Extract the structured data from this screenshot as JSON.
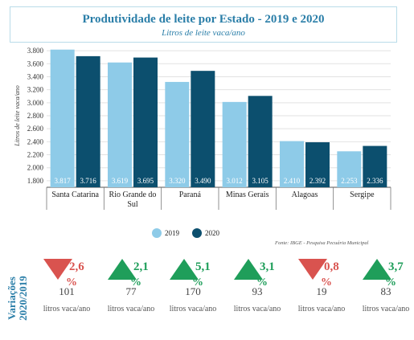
{
  "title": "Produtividade de leite por Estado - 2019 e 2020",
  "subtitle": "Litros de leite vaca/ano",
  "source": "Fonte: IBGE - Pesquisa Pecuária Municipal",
  "colors": {
    "y2019": "#8ecbe8",
    "y2020": "#0c4f6e",
    "up": "#1f9e5a",
    "down": "#d9534f",
    "accent": "#2a7ea8"
  },
  "chart_data": {
    "type": "bar",
    "title": "Produtividade de leite por Estado - 2019 e 2020",
    "subtitle": "Litros de leite vaca/ano",
    "ylabel": "Litros de leite vaca/ano",
    "ylim": [
      1700,
      3900
    ],
    "yticks": [
      "1.800",
      "2.000",
      "2.200",
      "2.400",
      "2.600",
      "2.800",
      "3.000",
      "3.200",
      "3.400",
      "3.600",
      "3.800"
    ],
    "ytick_values": [
      1800,
      2000,
      2200,
      2400,
      2600,
      2800,
      3000,
      3200,
      3400,
      3600,
      3800
    ],
    "categories": [
      "Santa Catarina",
      "Rio Grande do Sul",
      "Paraná",
      "Minas Gerais",
      "Alagoas",
      "Sergipe"
    ],
    "series": [
      {
        "name": "2019",
        "values": [
          3817,
          3619,
          3320,
          3012,
          2410,
          2253
        ],
        "labels": [
          "3.817",
          "3.619",
          "3.320",
          "3.012",
          "2.410",
          "2.253"
        ]
      },
      {
        "name": "2020",
        "values": [
          3716,
          3695,
          3490,
          3105,
          2392,
          2336
        ],
        "labels": [
          "3.716",
          "3.695",
          "3.490",
          "3.105",
          "2.392",
          "2.336"
        ]
      }
    ],
    "legend": [
      "2019",
      "2020"
    ],
    "legend_position": "bottom"
  },
  "variations": {
    "label": "Variações 2020/2019",
    "items": [
      {
        "direction": "down",
        "pct": "2,6",
        "pct_sign": "%",
        "abs": "101",
        "unit": "litros vaca/ano"
      },
      {
        "direction": "up",
        "pct": "2,1",
        "pct_sign": "%",
        "abs": "77",
        "unit": "litros vaca/ano"
      },
      {
        "direction": "up",
        "pct": "5,1",
        "pct_sign": "%",
        "abs": "170",
        "unit": "litros vaca/ano"
      },
      {
        "direction": "up",
        "pct": "3,1",
        "pct_sign": "%",
        "abs": "93",
        "unit": "litros vaca/ano"
      },
      {
        "direction": "down",
        "pct": "0,8",
        "pct_sign": "%",
        "abs": "19",
        "unit": "litros vaca/ano"
      },
      {
        "direction": "up",
        "pct": "3,7",
        "pct_sign": "%",
        "abs": "83",
        "unit": "litros vaca/ano"
      }
    ]
  }
}
